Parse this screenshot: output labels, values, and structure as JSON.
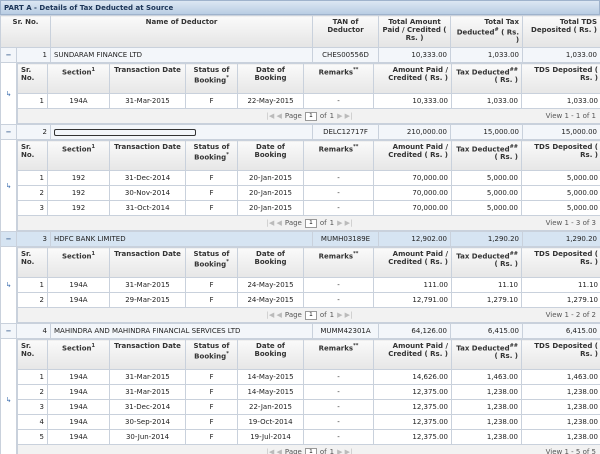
{
  "title": "PART A - Details of Tax Deducted at Source",
  "main_header": [
    {
      "text": "Sr. No."
    },
    {
      "text": "Name of Deductor"
    },
    {
      "text": "TAN of Deductor"
    },
    {
      "text": "Total Amount Paid / Credited ( Rs. )"
    },
    {
      "text": "Total Tax Deducted",
      "sup": "#",
      "after": "( Rs. )"
    },
    {
      "text": "Total TDS Deposited ( Rs. )"
    }
  ],
  "sub_header": [
    {
      "text": "Sr. No."
    },
    {
      "text": "Section",
      "sup": "1"
    },
    {
      "text": "Transaction Date"
    },
    {
      "text": "Status of Booking",
      "sup": "*"
    },
    {
      "text": "Date of Booking"
    },
    {
      "text": "Remarks",
      "sup": "**"
    },
    {
      "text": "Amount Paid / Credited ( Rs. )"
    },
    {
      "text": "Tax Deducted",
      "sup": "##",
      "after": "( Rs. )"
    },
    {
      "text": "TDS Deposited ( Rs. )"
    }
  ],
  "pager_label": "Page",
  "pager_of": "of",
  "deductors": [
    {
      "sr": "1",
      "name": "SUNDARAM FINANCE LTD",
      "tan": "CHES00556D",
      "amount": "10,333.00",
      "tax": "1,033.00",
      "tds": "1,033.00",
      "rows": [
        [
          "1",
          "194A",
          "31-Mar-2015",
          "F",
          "22-May-2015",
          "-",
          "10,333.00",
          "1,033.00",
          "1,033.00"
        ]
      ],
      "page": "1",
      "pages": "1",
      "view": "View 1 - 1 of 1"
    },
    {
      "sr": "2",
      "tan": "DELC12717F",
      "amount": "210,000.00",
      "tax": "15,000.00",
      "tds": "15,000.00",
      "rows": [
        [
          "1",
          "192",
          "31-Dec-2014",
          "F",
          "20-Jan-2015",
          "-",
          "70,000.00",
          "5,000.00",
          "5,000.00"
        ],
        [
          "2",
          "192",
          "30-Nov-2014",
          "F",
          "20-Jan-2015",
          "-",
          "70,000.00",
          "5,000.00",
          "5,000.00"
        ],
        [
          "3",
          "192",
          "31-Oct-2014",
          "F",
          "20-Jan-2015",
          "-",
          "70,000.00",
          "5,000.00",
          "5,000.00"
        ]
      ],
      "page": "1",
      "pages": "1",
      "view": "View 1 - 3 of 3"
    },
    {
      "sr": "3",
      "name": "HDFC BANK LIMITED",
      "tan": "MUMH03189E",
      "amount": "12,902.00",
      "tax": "1,290.20",
      "tds": "1,290.20",
      "rows": [
        [
          "1",
          "194A",
          "31-Mar-2015",
          "F",
          "24-May-2015",
          "-",
          "111.00",
          "11.10",
          "11.10"
        ],
        [
          "2",
          "194A",
          "29-Mar-2015",
          "F",
          "24-May-2015",
          "-",
          "12,791.00",
          "1,279.10",
          "1,279.10"
        ]
      ],
      "page": "1",
      "pages": "1",
      "view": "View 1 - 2 of 2"
    },
    {
      "sr": "4",
      "name": "MAHINDRA AND MAHINDRA FINANCIAL SERVICES LTD",
      "tan": "MUMM42301A",
      "amount": "64,126.00",
      "tax": "6,415.00",
      "tds": "6,415.00",
      "rows": [
        [
          "1",
          "194A",
          "31-Mar-2015",
          "F",
          "14-May-2015",
          "-",
          "14,626.00",
          "1,463.00",
          "1,463.00"
        ],
        [
          "2",
          "194A",
          "31-Mar-2015",
          "F",
          "14-May-2015",
          "-",
          "12,375.00",
          "1,238.00",
          "1,238.00"
        ],
        [
          "3",
          "194A",
          "31-Dec-2014",
          "F",
          "22-Jan-2015",
          "-",
          "12,375.00",
          "1,238.00",
          "1,238.00"
        ],
        [
          "4",
          "194A",
          "30-Sep-2014",
          "F",
          "19-Oct-2014",
          "-",
          "12,375.00",
          "1,238.00",
          "1,238.00"
        ],
        [
          "5",
          "194A",
          "30-Jun-2014",
          "F",
          "19-Jul-2014",
          "-",
          "12,375.00",
          "1,238.00",
          "1,238.00"
        ]
      ],
      "page": "1",
      "pages": "1",
      "view": "View 1 - 5 of 5"
    }
  ]
}
